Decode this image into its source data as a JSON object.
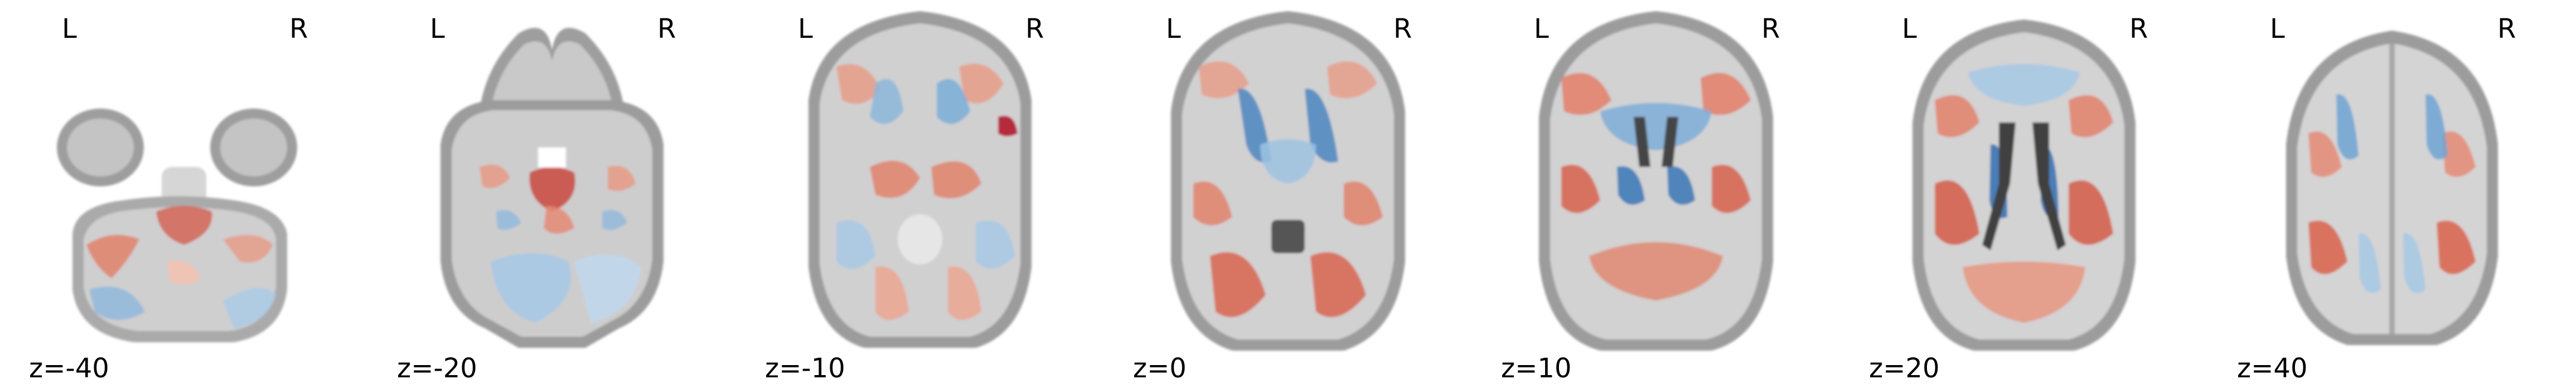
{
  "figure": {
    "type": "axial brain slice montage",
    "colormap": [
      "#2166ac",
      "#67a9cf",
      "#f7f7f7",
      "#ef8a62",
      "#b2182b"
    ],
    "background_color": "#ffffff"
  },
  "orientation": {
    "left": "L",
    "right": "R"
  },
  "slices": [
    {
      "z_label": "z=-40",
      "z": -40
    },
    {
      "z_label": "z=-20",
      "z": -20
    },
    {
      "z_label": "z=-10",
      "z": -10
    },
    {
      "z_label": "z=0",
      "z": 0
    },
    {
      "z_label": "z=10",
      "z": 10
    },
    {
      "z_label": "z=20",
      "z": 20
    },
    {
      "z_label": "z=40",
      "z": 40
    }
  ]
}
